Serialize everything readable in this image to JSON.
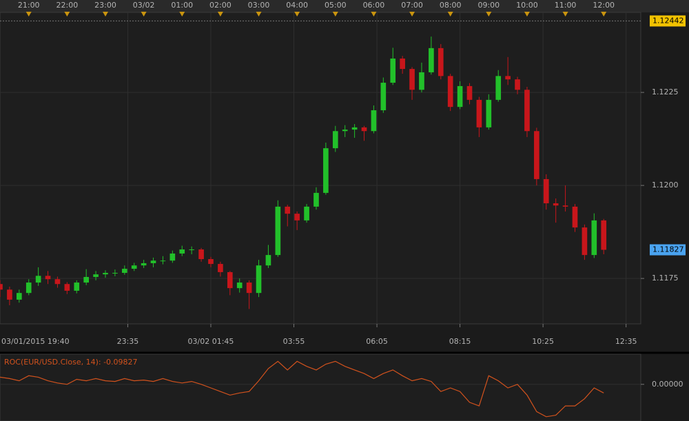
{
  "chart_data": [
    {
      "type": "candlestick",
      "x": [
        1215,
        1230,
        1245,
        1260,
        1275,
        1290,
        1305,
        1320,
        1335,
        1350,
        1365,
        1380,
        1395,
        1410,
        1425,
        1440,
        1455,
        1470,
        1485,
        1500,
        1515,
        1530,
        1545,
        1560,
        1575,
        1590,
        1605,
        1620,
        1635,
        1650,
        1665,
        1680,
        1695,
        1710,
        1725,
        1740,
        1755,
        1770,
        1785,
        1800,
        1815,
        1830,
        1845,
        1860,
        1875,
        1890,
        1905,
        1920,
        1935,
        1950,
        1965,
        1980,
        1995,
        2010,
        2025,
        2040,
        2055,
        2070,
        2085,
        2100,
        2115,
        2130,
        2145,
        2160
      ],
      "open": [
        1.11735,
        1.1172,
        1.11693,
        1.11711,
        1.11739,
        1.11757,
        1.11748,
        1.11735,
        1.11717,
        1.11739,
        1.11754,
        1.11761,
        1.11765,
        1.11765,
        1.11776,
        1.11785,
        1.11791,
        1.11798,
        1.11798,
        1.11817,
        1.11828,
        1.11828,
        1.11802,
        1.11789,
        1.11767,
        1.11724,
        1.11739,
        1.11711,
        1.11785,
        1.11813,
        1.11943,
        1.11924,
        1.11906,
        1.11943,
        1.1198,
        1.121,
        1.12146,
        1.1215,
        1.12156,
        1.12146,
        1.12202,
        1.12276,
        1.12341,
        1.12313,
        1.12257,
        1.12304,
        1.12369,
        1.12294,
        1.12211,
        1.12267,
        1.1223,
        1.12156,
        1.1223,
        1.12294,
        1.12285,
        1.12257,
        1.12146,
        1.12017,
        1.11952,
        1.11946,
        1.11943,
        1.11887,
        1.11813,
        1.11906
      ],
      "high": [
        1.11745,
        1.11728,
        1.1172,
        1.11748,
        1.1178,
        1.1177,
        1.11755,
        1.1174,
        1.11745,
        1.11775,
        1.1177,
        1.11772,
        1.11774,
        1.11785,
        1.11792,
        1.118,
        1.11806,
        1.1181,
        1.11825,
        1.11838,
        1.11836,
        1.11832,
        1.11808,
        1.11795,
        1.1177,
        1.1175,
        1.11745,
        1.118,
        1.1184,
        1.1196,
        1.11948,
        1.1193,
        1.1195,
        1.11995,
        1.12115,
        1.1216,
        1.12162,
        1.12165,
        1.1216,
        1.12215,
        1.1229,
        1.1237,
        1.12348,
        1.12318,
        1.1233,
        1.124,
        1.1238,
        1.123,
        1.1228,
        1.12275,
        1.12238,
        1.12245,
        1.1231,
        1.12345,
        1.12292,
        1.12265,
        1.12155,
        1.1203,
        1.11965,
        1.12,
        1.1195,
        1.11895,
        1.11925,
        1.1191
      ],
      "low": [
        1.117,
        1.11678,
        1.11685,
        1.11705,
        1.1173,
        1.11735,
        1.11725,
        1.11708,
        1.1171,
        1.11732,
        1.11745,
        1.11752,
        1.11756,
        1.1176,
        1.1177,
        1.11778,
        1.1178,
        1.11788,
        1.11792,
        1.1181,
        1.11815,
        1.11795,
        1.1178,
        1.11755,
        1.11705,
        1.11712,
        1.11668,
        1.117,
        1.11778,
        1.11808,
        1.1189,
        1.1188,
        1.119,
        1.11935,
        1.11975,
        1.1209,
        1.1213,
        1.12128,
        1.1212,
        1.1214,
        1.12195,
        1.1227,
        1.123,
        1.1223,
        1.1225,
        1.12298,
        1.12285,
        1.122,
        1.12205,
        1.12218,
        1.1213,
        1.1215,
        1.12225,
        1.1227,
        1.12245,
        1.1213,
        1.12,
        1.11935,
        1.119,
        1.1193,
        1.11875,
        1.118,
        1.11805,
        1.11815
      ],
      "close": [
        1.1172,
        1.11693,
        1.11711,
        1.11739,
        1.11757,
        1.11748,
        1.11735,
        1.11717,
        1.11739,
        1.11754,
        1.11761,
        1.11765,
        1.11765,
        1.11776,
        1.11785,
        1.11791,
        1.11798,
        1.11798,
        1.11817,
        1.11828,
        1.11828,
        1.11802,
        1.11789,
        1.11767,
        1.11724,
        1.11739,
        1.11711,
        1.11785,
        1.11813,
        1.11943,
        1.11924,
        1.11906,
        1.11943,
        1.1198,
        1.121,
        1.12146,
        1.1215,
        1.12156,
        1.12146,
        1.12202,
        1.12276,
        1.12341,
        1.12313,
        1.12257,
        1.12304,
        1.12369,
        1.12294,
        1.12211,
        1.12267,
        1.1223,
        1.12156,
        1.1223,
        1.12294,
        1.12285,
        1.12257,
        1.12146,
        1.12017,
        1.11952,
        1.11946,
        1.11943,
        1.11887,
        1.11813,
        1.11906,
        1.11827
      ],
      "up_color": "#22c02a",
      "down_color": "#c8161b",
      "xlim": [
        1215,
        2218
      ],
      "top_xticks": [
        {
          "value": 1260,
          "label": "21:00"
        },
        {
          "value": 1320,
          "label": "22:00"
        },
        {
          "value": 1380,
          "label": "23:00"
        },
        {
          "value": 1440,
          "label": "03/02"
        },
        {
          "value": 1500,
          "label": "01:00"
        },
        {
          "value": 1560,
          "label": "02:00"
        },
        {
          "value": 1620,
          "label": "03:00"
        },
        {
          "value": 1680,
          "label": "04:00"
        },
        {
          "value": 1740,
          "label": "05:00"
        },
        {
          "value": 1800,
          "label": "06:00"
        },
        {
          "value": 1860,
          "label": "07:00"
        },
        {
          "value": 1920,
          "label": "08:00"
        },
        {
          "value": 1980,
          "label": "09:00"
        },
        {
          "value": 2040,
          "label": "10:00"
        },
        {
          "value": 2100,
          "label": "11:00"
        },
        {
          "value": 2160,
          "label": "12:00"
        }
      ],
      "xticks": [
        {
          "value": 1180,
          "label": "03/01/2015 19:40"
        },
        {
          "value": 1415,
          "label": "23:35"
        },
        {
          "value": 1545,
          "label": "03/02 01:45"
        },
        {
          "value": 1675,
          "label": "03:55"
        },
        {
          "value": 1805,
          "label": "06:05"
        },
        {
          "value": 1935,
          "label": "08:15"
        },
        {
          "value": 2065,
          "label": "10:25"
        },
        {
          "value": 2195,
          "label": "12:35"
        }
      ],
      "ylim": [
        1.11628,
        1.12465
      ],
      "yticks": [
        1.1175,
        {
          "value": 1.12,
          "label": "1.1200"
        },
        1.1225
      ],
      "high_line": 1.12442,
      "last_price": 1.11827,
      "grid": true
    },
    {
      "type": "line",
      "title": "ROC(EUR/USD.Close, 14): -0.09827",
      "color": "#d2521d",
      "x": [
        1215,
        1230,
        1245,
        1260,
        1275,
        1290,
        1305,
        1320,
        1335,
        1350,
        1365,
        1380,
        1395,
        1410,
        1425,
        1440,
        1455,
        1470,
        1485,
        1500,
        1515,
        1530,
        1545,
        1560,
        1575,
        1590,
        1605,
        1620,
        1635,
        1650,
        1665,
        1680,
        1695,
        1710,
        1725,
        1740,
        1755,
        1770,
        1785,
        1800,
        1815,
        1830,
        1845,
        1860,
        1875,
        1890,
        1905,
        1920,
        1935,
        1950,
        1965,
        1980,
        1995,
        2010,
        2025,
        2040,
        2055,
        2070,
        2085,
        2100,
        2115,
        2130,
        2145,
        2160
      ],
      "values": [
        0.082,
        0.066,
        0.041,
        0.098,
        0.082,
        0.041,
        0.016,
        0,
        0.057,
        0.041,
        0.066,
        0.041,
        0.033,
        0.066,
        0.041,
        0.049,
        0.033,
        0.066,
        0.033,
        0.016,
        0.033,
        0,
        -0.041,
        -0.082,
        -0.123,
        -0.098,
        -0.082,
        0.041,
        0.18,
        0.262,
        0.164,
        0.262,
        0.205,
        0.164,
        0.23,
        0.262,
        0.205,
        0.164,
        0.123,
        0.066,
        0.123,
        0.164,
        0.098,
        0.041,
        0.066,
        0.033,
        -0.082,
        -0.041,
        -0.082,
        -0.205,
        -0.246,
        0.098,
        0.041,
        -0.041,
        0,
        -0.123,
        -0.311,
        -0.369,
        -0.352,
        -0.246,
        -0.246,
        -0.164,
        -0.041,
        -0.09827
      ],
      "xlim": [
        1215,
        2218
      ],
      "ylim": [
        -0.418,
        0.344
      ],
      "yticks": [
        {
          "value": 0,
          "label": "0.00000"
        }
      ]
    }
  ]
}
